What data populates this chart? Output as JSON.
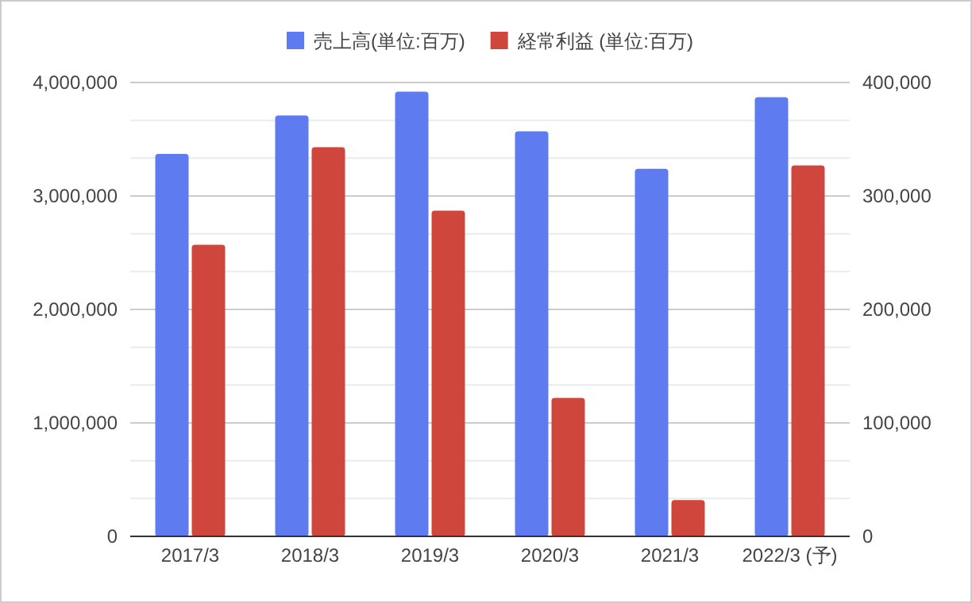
{
  "chart_data": {
    "type": "bar",
    "categories": [
      "2017/3",
      "2018/3",
      "2019/3",
      "2020/3",
      "2021/3",
      "2022/3 (予)"
    ],
    "series": [
      {
        "name": "売上高(単位:百万)",
        "color": "#5f7bf0",
        "values": [
          3370000,
          3710000,
          3920000,
          3570000,
          3240000,
          3870000
        ]
      },
      {
        "name": "経常利益 (単位:百万)",
        "color": "#cf463c",
        "axis": "y2",
        "values": [
          257000,
          343000,
          287000,
          122000,
          32000,
          327000
        ]
      }
    ],
    "ylim": [
      0,
      4000000
    ],
    "yticks": [
      {
        "value": 0,
        "label": "0"
      },
      {
        "value": 1000000,
        "label": "1,000,000"
      },
      {
        "value": 2000000,
        "label": "2,000,000"
      },
      {
        "value": 3000000,
        "label": "3,000,000"
      },
      {
        "value": 4000000,
        "label": "4,000,000"
      }
    ],
    "y2lim": [
      0,
      400000
    ],
    "y2ticks": [
      {
        "value": 0,
        "label": "0"
      },
      {
        "value": 100000,
        "label": "100,000"
      },
      {
        "value": 200000,
        "label": "200,000"
      },
      {
        "value": 300000,
        "label": "300,000"
      },
      {
        "value": 400000,
        "label": "400,000"
      }
    ],
    "grid": true,
    "legend": "top"
  }
}
